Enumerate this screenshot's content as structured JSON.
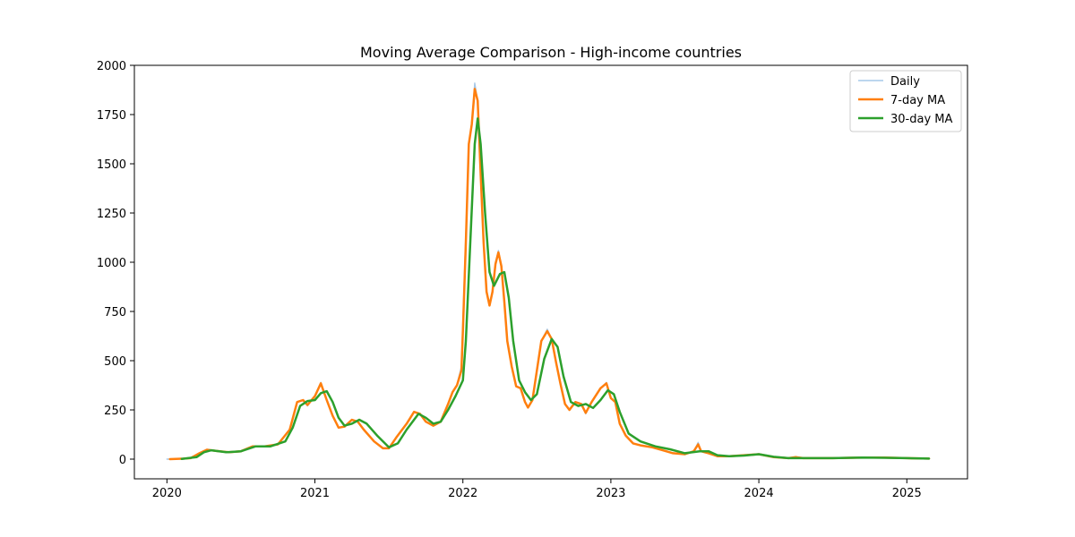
{
  "chart_data": {
    "type": "line",
    "title": "Moving Average Comparison - High-income countries",
    "xlabel": "",
    "ylabel": "",
    "xlim": [
      2019.78,
      2025.41
    ],
    "ylim": [
      -100,
      2000
    ],
    "xticks": [
      2020,
      2021,
      2022,
      2023,
      2024,
      2025
    ],
    "yticks": [
      0,
      250,
      500,
      750,
      1000,
      1250,
      1500,
      1750,
      2000
    ],
    "grid": false,
    "legend_position": "top-right",
    "series": [
      {
        "name": "Daily",
        "color": "#a6c8e8",
        "points": [
          [
            2020.0,
            0
          ],
          [
            2020.08,
            1
          ],
          [
            2020.16,
            5
          ],
          [
            2020.22,
            30
          ],
          [
            2020.27,
            50
          ],
          [
            2020.33,
            42
          ],
          [
            2020.42,
            35
          ],
          [
            2020.5,
            40
          ],
          [
            2020.58,
            65
          ],
          [
            2020.66,
            65
          ],
          [
            2020.75,
            75
          ],
          [
            2020.83,
            150
          ],
          [
            2020.88,
            290
          ],
          [
            2020.92,
            300
          ],
          [
            2020.95,
            270
          ],
          [
            2021.0,
            320
          ],
          [
            2021.04,
            390
          ],
          [
            2021.08,
            300
          ],
          [
            2021.12,
            220
          ],
          [
            2021.16,
            160
          ],
          [
            2021.2,
            165
          ],
          [
            2021.25,
            200
          ],
          [
            2021.29,
            190
          ],
          [
            2021.33,
            150
          ],
          [
            2021.4,
            90
          ],
          [
            2021.46,
            55
          ],
          [
            2021.5,
            55
          ],
          [
            2021.55,
            110
          ],
          [
            2021.62,
            180
          ],
          [
            2021.67,
            240
          ],
          [
            2021.71,
            230
          ],
          [
            2021.75,
            190
          ],
          [
            2021.8,
            170
          ],
          [
            2021.85,
            190
          ],
          [
            2021.9,
            280
          ],
          [
            2021.93,
            340
          ],
          [
            2021.96,
            380
          ],
          [
            2021.99,
            470
          ],
          [
            2022.0,
            700
          ],
          [
            2022.02,
            1150
          ],
          [
            2022.04,
            1600
          ],
          [
            2022.06,
            1700
          ],
          [
            2022.08,
            1910
          ],
          [
            2022.1,
            1820
          ],
          [
            2022.12,
            1450
          ],
          [
            2022.14,
            1100
          ],
          [
            2022.16,
            850
          ],
          [
            2022.18,
            780
          ],
          [
            2022.2,
            850
          ],
          [
            2022.22,
            1000
          ],
          [
            2022.24,
            1060
          ],
          [
            2022.26,
            980
          ],
          [
            2022.28,
            800
          ],
          [
            2022.3,
            600
          ],
          [
            2022.33,
            470
          ],
          [
            2022.36,
            370
          ],
          [
            2022.39,
            360
          ],
          [
            2022.42,
            290
          ],
          [
            2022.44,
            260
          ],
          [
            2022.47,
            300
          ],
          [
            2022.5,
            450
          ],
          [
            2022.53,
            600
          ],
          [
            2022.57,
            660
          ],
          [
            2022.6,
            610
          ],
          [
            2022.63,
            490
          ],
          [
            2022.66,
            380
          ],
          [
            2022.69,
            280
          ],
          [
            2022.72,
            250
          ],
          [
            2022.76,
            290
          ],
          [
            2022.8,
            280
          ],
          [
            2022.83,
            230
          ],
          [
            2022.87,
            290
          ],
          [
            2022.93,
            360
          ],
          [
            2022.97,
            390
          ],
          [
            2023.0,
            310
          ],
          [
            2023.03,
            290
          ],
          [
            2023.06,
            180
          ],
          [
            2023.1,
            120
          ],
          [
            2023.15,
            80
          ],
          [
            2023.2,
            70
          ],
          [
            2023.28,
            60
          ],
          [
            2023.35,
            45
          ],
          [
            2023.42,
            30
          ],
          [
            2023.5,
            25
          ],
          [
            2023.56,
            40
          ],
          [
            2023.59,
            85
          ],
          [
            2023.61,
            40
          ],
          [
            2023.66,
            30
          ],
          [
            2023.72,
            15
          ],
          [
            2023.8,
            15
          ],
          [
            2023.9,
            20
          ],
          [
            2024.0,
            25
          ],
          [
            2024.1,
            10
          ],
          [
            2024.2,
            5
          ],
          [
            2024.25,
            12
          ],
          [
            2024.3,
            5
          ],
          [
            2024.5,
            5
          ],
          [
            2024.7,
            8
          ],
          [
            2024.85,
            8
          ],
          [
            2025.0,
            5
          ],
          [
            2025.15,
            3
          ]
        ]
      },
      {
        "name": "7-day MA",
        "color": "#ff7f0e",
        "points": [
          [
            2020.02,
            0
          ],
          [
            2020.1,
            2
          ],
          [
            2020.16,
            5
          ],
          [
            2020.22,
            30
          ],
          [
            2020.27,
            48
          ],
          [
            2020.33,
            42
          ],
          [
            2020.42,
            35
          ],
          [
            2020.5,
            40
          ],
          [
            2020.58,
            65
          ],
          [
            2020.66,
            65
          ],
          [
            2020.75,
            75
          ],
          [
            2020.83,
            150
          ],
          [
            2020.88,
            290
          ],
          [
            2020.92,
            300
          ],
          [
            2020.95,
            275
          ],
          [
            2021.0,
            320
          ],
          [
            2021.04,
            385
          ],
          [
            2021.08,
            300
          ],
          [
            2021.12,
            220
          ],
          [
            2021.16,
            160
          ],
          [
            2021.2,
            165
          ],
          [
            2021.25,
            200
          ],
          [
            2021.29,
            190
          ],
          [
            2021.33,
            150
          ],
          [
            2021.4,
            90
          ],
          [
            2021.46,
            55
          ],
          [
            2021.5,
            55
          ],
          [
            2021.55,
            110
          ],
          [
            2021.62,
            180
          ],
          [
            2021.67,
            240
          ],
          [
            2021.71,
            230
          ],
          [
            2021.75,
            190
          ],
          [
            2021.8,
            170
          ],
          [
            2021.85,
            190
          ],
          [
            2021.9,
            280
          ],
          [
            2021.93,
            340
          ],
          [
            2021.96,
            375
          ],
          [
            2021.99,
            450
          ],
          [
            2022.0,
            650
          ],
          [
            2022.02,
            1100
          ],
          [
            2022.04,
            1600
          ],
          [
            2022.06,
            1700
          ],
          [
            2022.08,
            1880
          ],
          [
            2022.1,
            1820
          ],
          [
            2022.12,
            1450
          ],
          [
            2022.14,
            1100
          ],
          [
            2022.16,
            850
          ],
          [
            2022.18,
            780
          ],
          [
            2022.2,
            850
          ],
          [
            2022.22,
            990
          ],
          [
            2022.24,
            1050
          ],
          [
            2022.26,
            980
          ],
          [
            2022.28,
            800
          ],
          [
            2022.3,
            600
          ],
          [
            2022.33,
            470
          ],
          [
            2022.36,
            370
          ],
          [
            2022.39,
            360
          ],
          [
            2022.42,
            290
          ],
          [
            2022.44,
            262
          ],
          [
            2022.47,
            300
          ],
          [
            2022.5,
            450
          ],
          [
            2022.53,
            600
          ],
          [
            2022.57,
            650
          ],
          [
            2022.6,
            610
          ],
          [
            2022.63,
            490
          ],
          [
            2022.66,
            380
          ],
          [
            2022.69,
            280
          ],
          [
            2022.72,
            250
          ],
          [
            2022.76,
            290
          ],
          [
            2022.8,
            280
          ],
          [
            2022.83,
            235
          ],
          [
            2022.87,
            290
          ],
          [
            2022.93,
            360
          ],
          [
            2022.97,
            385
          ],
          [
            2023.0,
            310
          ],
          [
            2023.03,
            290
          ],
          [
            2023.06,
            180
          ],
          [
            2023.1,
            120
          ],
          [
            2023.15,
            80
          ],
          [
            2023.2,
            70
          ],
          [
            2023.28,
            60
          ],
          [
            2023.35,
            45
          ],
          [
            2023.42,
            30
          ],
          [
            2023.5,
            25
          ],
          [
            2023.56,
            40
          ],
          [
            2023.59,
            75
          ],
          [
            2023.61,
            40
          ],
          [
            2023.66,
            30
          ],
          [
            2023.72,
            15
          ],
          [
            2023.8,
            15
          ],
          [
            2023.9,
            20
          ],
          [
            2024.0,
            25
          ],
          [
            2024.1,
            10
          ],
          [
            2024.2,
            5
          ],
          [
            2024.25,
            10
          ],
          [
            2024.3,
            5
          ],
          [
            2024.5,
            5
          ],
          [
            2024.7,
            8
          ],
          [
            2024.85,
            8
          ],
          [
            2025.0,
            5
          ],
          [
            2025.15,
            3
          ]
        ]
      },
      {
        "name": "30-day MA",
        "color": "#2ca02c",
        "points": [
          [
            2020.1,
            1
          ],
          [
            2020.2,
            10
          ],
          [
            2020.25,
            35
          ],
          [
            2020.3,
            45
          ],
          [
            2020.4,
            35
          ],
          [
            2020.5,
            40
          ],
          [
            2020.6,
            65
          ],
          [
            2020.7,
            65
          ],
          [
            2020.8,
            90
          ],
          [
            2020.85,
            160
          ],
          [
            2020.9,
            270
          ],
          [
            2020.95,
            295
          ],
          [
            2021.0,
            300
          ],
          [
            2021.04,
            335
          ],
          [
            2021.08,
            345
          ],
          [
            2021.12,
            290
          ],
          [
            2021.16,
            210
          ],
          [
            2021.2,
            170
          ],
          [
            2021.25,
            180
          ],
          [
            2021.3,
            200
          ],
          [
            2021.35,
            180
          ],
          [
            2021.42,
            120
          ],
          [
            2021.5,
            60
          ],
          [
            2021.56,
            80
          ],
          [
            2021.62,
            150
          ],
          [
            2021.7,
            230
          ],
          [
            2021.75,
            210
          ],
          [
            2021.8,
            180
          ],
          [
            2021.85,
            190
          ],
          [
            2021.9,
            250
          ],
          [
            2021.95,
            320
          ],
          [
            2022.0,
            400
          ],
          [
            2022.02,
            600
          ],
          [
            2022.05,
            1100
          ],
          [
            2022.08,
            1600
          ],
          [
            2022.1,
            1730
          ],
          [
            2022.12,
            1600
          ],
          [
            2022.15,
            1250
          ],
          [
            2022.18,
            950
          ],
          [
            2022.21,
            880
          ],
          [
            2022.25,
            940
          ],
          [
            2022.28,
            950
          ],
          [
            2022.31,
            820
          ],
          [
            2022.34,
            600
          ],
          [
            2022.38,
            400
          ],
          [
            2022.42,
            340
          ],
          [
            2022.46,
            300
          ],
          [
            2022.5,
            330
          ],
          [
            2022.55,
            510
          ],
          [
            2022.6,
            610
          ],
          [
            2022.64,
            570
          ],
          [
            2022.68,
            420
          ],
          [
            2022.73,
            290
          ],
          [
            2022.78,
            270
          ],
          [
            2022.83,
            280
          ],
          [
            2022.88,
            260
          ],
          [
            2022.93,
            300
          ],
          [
            2022.98,
            350
          ],
          [
            2023.02,
            330
          ],
          [
            2023.06,
            240
          ],
          [
            2023.12,
            130
          ],
          [
            2023.2,
            90
          ],
          [
            2023.3,
            65
          ],
          [
            2023.4,
            50
          ],
          [
            2023.5,
            30
          ],
          [
            2023.6,
            40
          ],
          [
            2023.66,
            40
          ],
          [
            2023.72,
            20
          ],
          [
            2023.8,
            15
          ],
          [
            2023.9,
            18
          ],
          [
            2024.0,
            25
          ],
          [
            2024.1,
            12
          ],
          [
            2024.2,
            5
          ],
          [
            2024.3,
            5
          ],
          [
            2024.5,
            5
          ],
          [
            2024.7,
            8
          ],
          [
            2024.85,
            7
          ],
          [
            2025.0,
            5
          ],
          [
            2025.15,
            3
          ]
        ]
      }
    ]
  }
}
